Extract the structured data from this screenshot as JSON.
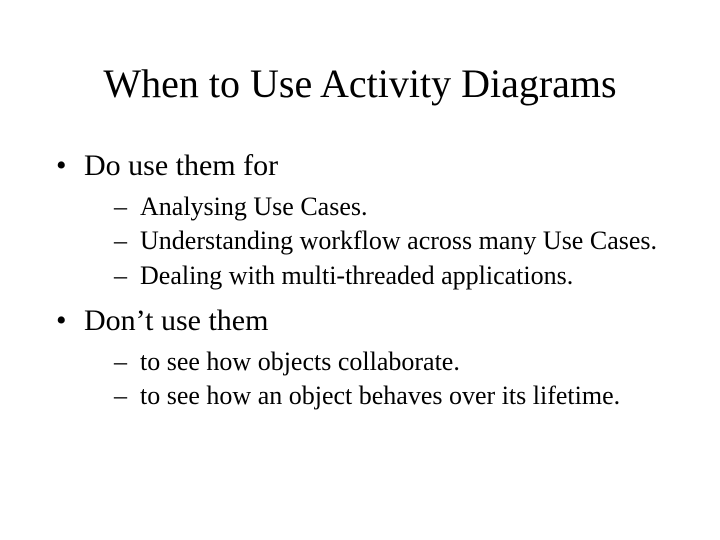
{
  "title": "When to Use Activity Diagrams",
  "title_fontsize": 40,
  "body_fontsize_l1": 30,
  "body_fontsize_l2": 26,
  "text_color": "#000000",
  "background_color": "#ffffff",
  "font_family": "Times New Roman",
  "bullets": {
    "level1": [
      {
        "text": "Do use them for",
        "sub": [
          "Analysing Use Cases.",
          "Understanding workflow across many Use Cases.",
          "Dealing with multi-threaded applications."
        ]
      },
      {
        "text": "Don’t use them",
        "sub": [
          "to see how objects collaborate.",
          "to see how an object behaves over its lifetime."
        ]
      }
    ]
  }
}
